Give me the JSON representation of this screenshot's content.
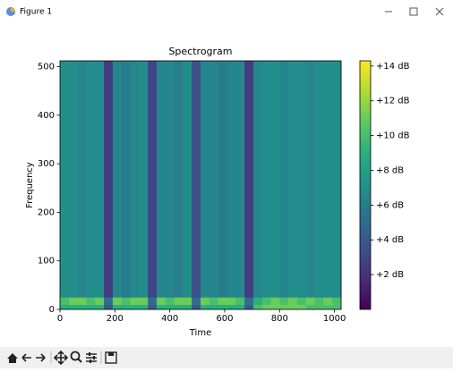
{
  "window": {
    "title": "Figure 1"
  },
  "chart_data": {
    "type": "heatmap",
    "title": "Spectrogram",
    "xlabel": "Time",
    "ylabel": "Frequency",
    "colormap": "viridis",
    "x_edges": [
      0,
      32,
      64,
      96,
      128,
      160,
      192,
      224,
      256,
      288,
      320,
      352,
      384,
      416,
      448,
      480,
      512,
      544,
      576,
      608,
      640,
      672,
      704,
      736,
      768,
      800,
      832,
      864,
      896,
      928,
      960,
      992,
      1024
    ],
    "y_edges": [
      0,
      10,
      25,
      512
    ],
    "z": [
      [
        9,
        9,
        9,
        9,
        9,
        4,
        9,
        9,
        9,
        9,
        4,
        9,
        9,
        9,
        9,
        4,
        9,
        9,
        9,
        9,
        9,
        4,
        10,
        11,
        11,
        11,
        11,
        11,
        10,
        10,
        10,
        10
      ],
      [
        10,
        11,
        11,
        10,
        11,
        5,
        11,
        10,
        11,
        11,
        5,
        11,
        10,
        11,
        11,
        5,
        11,
        10,
        11,
        11,
        10,
        5,
        9,
        10,
        11,
        10,
        11,
        10,
        11,
        10,
        11,
        10
      ],
      [
        7,
        7,
        6.5,
        7,
        7,
        2.5,
        6.5,
        6,
        6.5,
        7,
        3,
        6.5,
        6.5,
        6,
        7,
        3.5,
        6.5,
        6.5,
        6,
        6.5,
        6.5,
        2.5,
        6.5,
        7,
        7,
        6.5,
        7,
        7,
        6.5,
        7,
        7,
        7
      ]
    ],
    "xlim": [
      0,
      1024
    ],
    "ylim": [
      0,
      512
    ],
    "xticks": [
      0,
      200,
      400,
      600,
      800,
      1000
    ],
    "yticks": [
      0,
      100,
      200,
      300,
      400,
      500
    ],
    "colorbar": {
      "clim": [
        0,
        14.3
      ],
      "ticks": [
        {
          "value": 2,
          "label": "+2 dB"
        },
        {
          "value": 4,
          "label": "+4 dB"
        },
        {
          "value": 6,
          "label": "+6 dB"
        },
        {
          "value": 8,
          "label": "+8 dB"
        },
        {
          "value": 10,
          "label": "+10 dB"
        },
        {
          "value": 12,
          "label": "+12 dB"
        },
        {
          "value": 14,
          "label": "+14 dB"
        }
      ]
    }
  }
}
